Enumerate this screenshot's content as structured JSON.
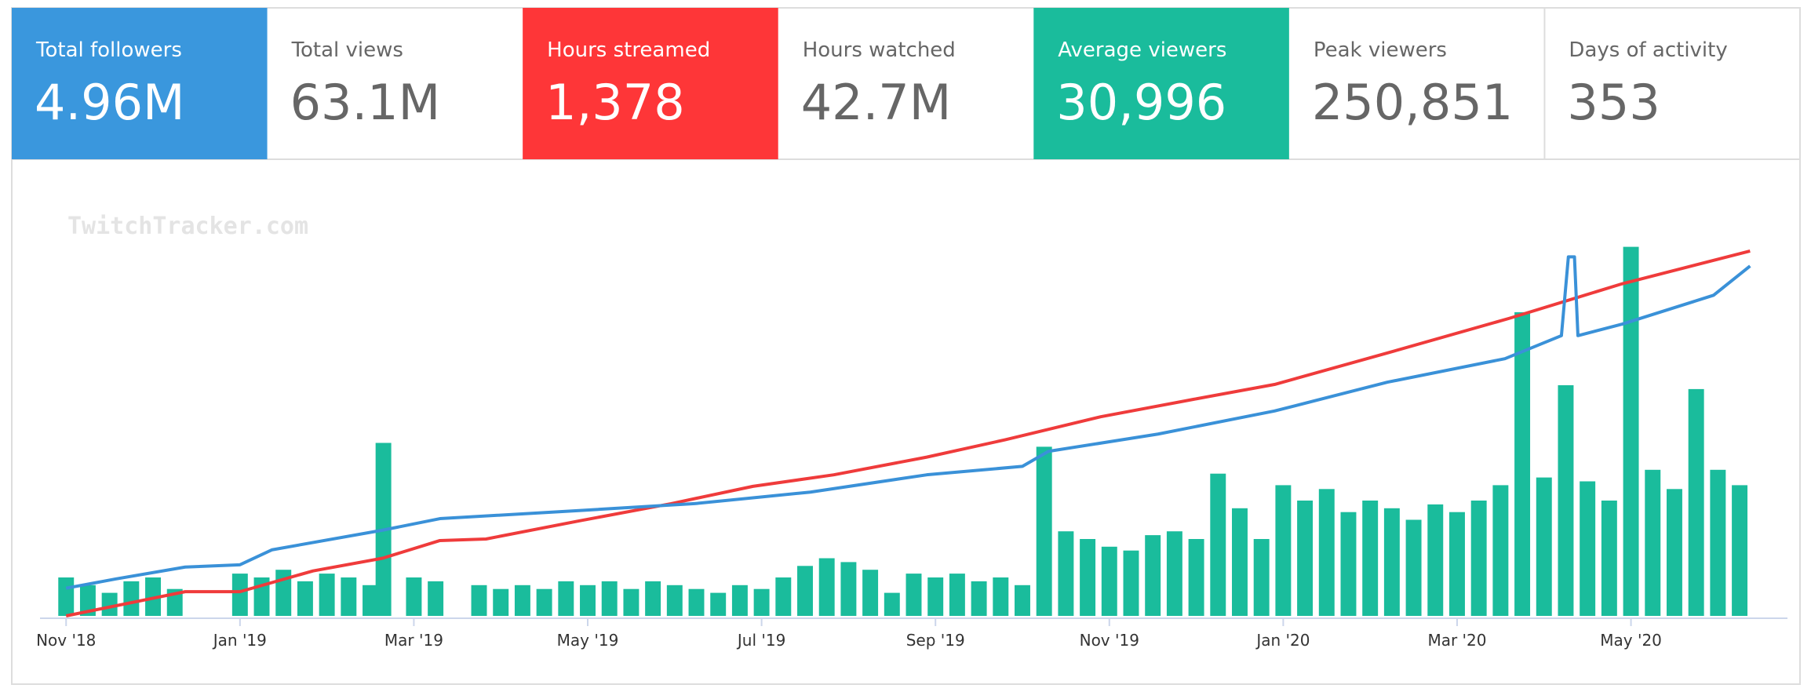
{
  "stats": [
    {
      "label": "Total followers",
      "value": "4.96M",
      "color": "#3a97dd"
    },
    {
      "label": "Total views",
      "value": "63.1M"
    },
    {
      "label": "Hours streamed",
      "value": "1,378",
      "color": "#fe3638"
    },
    {
      "label": "Hours watched",
      "value": "42.7M"
    },
    {
      "label": "Average viewers",
      "value": "30,996",
      "color": "#1abc9c"
    },
    {
      "label": "Peak viewers",
      "value": "250,851"
    },
    {
      "label": "Days of activity",
      "value": "353"
    }
  ],
  "chart_data": {
    "type": "bar-line",
    "watermark": "TwitchTracker.com",
    "xlim": [
      -0.3,
      19.8
    ],
    "ylim": [
      0,
      100
    ],
    "xticks": [
      {
        "value": 0,
        "label": "Nov '18"
      },
      {
        "value": 2,
        "label": "Jan '19"
      },
      {
        "value": 4,
        "label": "Mar '19"
      },
      {
        "value": 6,
        "label": "May '19"
      },
      {
        "value": 8,
        "label": "Jul '19"
      },
      {
        "value": 10,
        "label": "Sep '19"
      },
      {
        "value": 12,
        "label": "Nov '19"
      },
      {
        "value": 14,
        "label": "Jan '20"
      },
      {
        "value": 16,
        "label": "Mar '20"
      },
      {
        "value": 18,
        "label": "May '20"
      }
    ],
    "bars": {
      "color": "#1abc9c",
      "x": [
        0,
        0.25,
        0.5,
        0.75,
        1,
        1.25,
        1.5,
        1.75,
        2,
        2.25,
        2.5,
        2.75,
        3,
        3.25,
        3.5,
        3.65,
        4,
        4.25,
        4.5,
        4.75,
        5,
        5.25,
        5.5,
        5.75,
        6,
        6.25,
        6.5,
        6.75,
        7,
        7.25,
        7.5,
        7.75,
        8,
        8.25,
        8.5,
        8.75,
        9,
        9.25,
        9.5,
        9.75,
        10,
        10.25,
        10.5,
        10.75,
        11,
        11.25,
        11.5,
        11.75,
        12,
        12.25,
        12.5,
        12.75,
        13,
        13.25,
        13.5,
        13.75,
        14,
        14.25,
        14.5,
        14.75,
        15,
        15.25,
        15.5,
        15.75,
        16,
        16.25,
        16.5,
        16.75,
        17,
        17.25,
        17.5,
        17.75,
        18,
        18.25,
        18.5,
        18.75,
        19,
        19.25
      ],
      "values": [
        10,
        8,
        6,
        9,
        10,
        7,
        null,
        null,
        11,
        10,
        12,
        9,
        11,
        10,
        8,
        45,
        10,
        9,
        null,
        8,
        7,
        8,
        7,
        9,
        8,
        9,
        7,
        9,
        8,
        7,
        6,
        8,
        7,
        10,
        13,
        15,
        14,
        12,
        6,
        11,
        10,
        11,
        9,
        10,
        8,
        44,
        22,
        20,
        18,
        17,
        21,
        22,
        20,
        37,
        28,
        20,
        34,
        30,
        33,
        27,
        30,
        28,
        25,
        29,
        27,
        30,
        34,
        79,
        36,
        60,
        35,
        30,
        96,
        38,
        33,
        59,
        38,
        34
      ]
    },
    "series": [
      {
        "color": "#ef3b3b",
        "x": [
          0,
          1.37,
          2,
          2.84,
          3.64,
          4.3,
          4.83,
          5.9,
          6.96,
          7.9,
          8.83,
          9.9,
          10.8,
          11.9,
          12.96,
          13.9,
          15.2,
          16.6,
          17.9,
          19.37
        ],
        "values": [
          0,
          6.3,
          6.3,
          11.7,
          15,
          19.6,
          20,
          24.7,
          29.2,
          33.7,
          36.7,
          41.3,
          45.8,
          51.8,
          56.3,
          60.2,
          68.4,
          77.4,
          86.4,
          94.9
        ]
      },
      {
        "color": "#3a91d8",
        "x": [
          0,
          0.57,
          1.37,
          2,
          2.37,
          3.64,
          4.3,
          5.9,
          7.23,
          8.56,
          9.9,
          11,
          11.3,
          12.56,
          13.9,
          15.2,
          16.55,
          17.2,
          17.28,
          17.35,
          17.39,
          17.9,
          18.95,
          19.37
        ],
        "values": [
          7.2,
          9.6,
          12.7,
          13.3,
          17.2,
          22.3,
          25.3,
          27.4,
          29.2,
          32.2,
          36.7,
          38.9,
          42.8,
          47.3,
          53.3,
          60.8,
          66.9,
          72.9,
          93.4,
          93.4,
          72.9,
          75.9,
          83.4,
          91
        ]
      }
    ]
  }
}
